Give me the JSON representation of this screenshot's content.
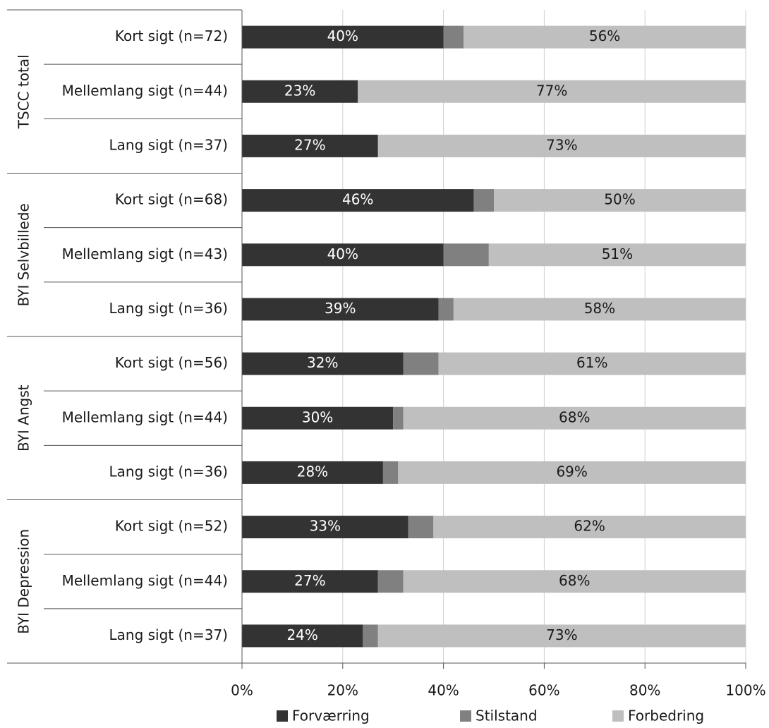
{
  "chart_data": {
    "type": "stacked-bar-horizontal",
    "groups": [
      "TSCC total",
      "BYI Selvbillede",
      "BYI Angst",
      "BYI Depression"
    ],
    "categories": [
      "Kort sigt (n=72)",
      "Mellemlang sigt (n=44)",
      "Lang sigt (n=37)",
      "Kort sigt (n=68)",
      "Mellemlang sigt (n=43)",
      "Lang sigt (n=36)",
      "Kort sigt (n=56)",
      "Mellemlang sigt (n=44)",
      "Lang sigt (n=36)",
      "Kort sigt (n=52)",
      "Mellemlang sigt (n=44)",
      "Lang sigt (n=37)"
    ],
    "series": [
      {
        "name": "Forværring",
        "color": "#333333",
        "label_color": "#ffffff",
        "values": [
          40,
          23,
          27,
          46,
          40,
          39,
          32,
          30,
          28,
          33,
          27,
          24
        ],
        "value_labels": [
          "40%",
          "23%",
          "27%",
          "46%",
          "40%",
          "39%",
          "32%",
          "30%",
          "28%",
          "33%",
          "27%",
          "24%"
        ]
      },
      {
        "name": "Stilstand",
        "color": "#808080",
        "values": [
          4,
          0,
          0,
          4,
          9,
          3,
          7,
          2,
          3,
          5,
          5,
          3
        ]
      },
      {
        "name": "Forbedring",
        "color": "#bfbfbf",
        "label_color": "#1a1a1a",
        "values": [
          56,
          77,
          73,
          50,
          51,
          58,
          61,
          68,
          69,
          62,
          68,
          73
        ],
        "value_labels": [
          "56%",
          "77%",
          "73%",
          "50%",
          "51%",
          "58%",
          "61%",
          "68%",
          "69%",
          "62%",
          "68%",
          "73%"
        ]
      }
    ],
    "xlim": [
      0,
      100
    ],
    "xticks": [
      {
        "value": 0,
        "label": "0%"
      },
      {
        "value": 20,
        "label": "20%"
      },
      {
        "value": 40,
        "label": "40%"
      },
      {
        "value": 60,
        "label": "60%"
      },
      {
        "value": 80,
        "label": "80%"
      },
      {
        "value": 100,
        "label": "100%"
      }
    ],
    "grid": true
  }
}
